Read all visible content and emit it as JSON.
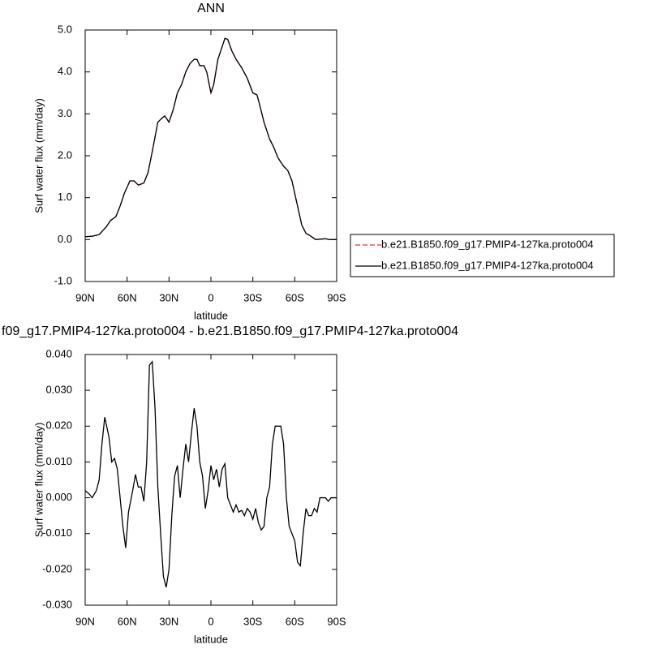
{
  "chart_data": [
    {
      "type": "line",
      "title": "ANN",
      "x_label": "latitude",
      "y_label": "Surf water flux (mm/day)",
      "xlim": [
        90,
        -90
      ],
      "xticks": [
        {
          "value": 90,
          "label": "90N"
        },
        {
          "value": 60,
          "label": "60N"
        },
        {
          "value": 30,
          "label": "30N"
        },
        0,
        {
          "value": -30,
          "label": "30S"
        },
        {
          "value": -60,
          "label": "60S"
        },
        {
          "value": -90,
          "label": "90S"
        }
      ],
      "ylim": [
        -1.0,
        5.0
      ],
      "yticks": [
        {
          "value": -1,
          "label": "-1.0"
        },
        {
          "value": 0,
          "label": "0.0"
        },
        {
          "value": 1,
          "label": "1.0"
        },
        {
          "value": 2,
          "label": "2.0"
        },
        {
          "value": 3,
          "label": "3.0"
        },
        {
          "value": 4,
          "label": "4.0"
        },
        {
          "value": 5,
          "label": "5.0"
        }
      ],
      "legend": "right",
      "x": [
        90,
        85,
        80,
        75,
        72,
        68,
        65,
        62,
        58,
        55,
        52,
        48,
        45,
        42,
        38,
        35,
        33,
        30,
        27,
        24,
        21,
        18,
        15,
        12,
        10,
        8,
        5,
        3,
        0,
        -2,
        -5,
        -8,
        -10,
        -12,
        -15,
        -18,
        -22,
        -26,
        -30,
        -33,
        -35,
        -38,
        -42,
        -45,
        -48,
        -52,
        -55,
        -58,
        -62,
        -65,
        -68,
        -72,
        -75,
        -78,
        -82,
        -85,
        -90
      ],
      "series": [
        {
          "name": "b.e21.B1850.f09_g17.PMIP4-127ka.proto004",
          "color": "#e03030",
          "dash": true,
          "values": [
            0.07,
            0.08,
            0.12,
            0.3,
            0.45,
            0.55,
            0.8,
            1.1,
            1.4,
            1.4,
            1.3,
            1.35,
            1.6,
            2.1,
            2.8,
            2.9,
            2.95,
            2.8,
            3.1,
            3.5,
            3.7,
            4.0,
            4.2,
            4.3,
            4.3,
            4.15,
            4.15,
            4.0,
            3.5,
            3.7,
            4.3,
            4.6,
            4.8,
            4.78,
            4.5,
            4.3,
            4.1,
            3.85,
            3.5,
            3.45,
            3.2,
            2.8,
            2.4,
            2.2,
            1.95,
            1.75,
            1.65,
            1.4,
            0.8,
            0.35,
            0.15,
            0.07,
            0.0,
            0.01,
            0.02,
            0.0,
            0.0
          ]
        },
        {
          "name": "b.e21.B1850.f09_g17.PMIP4-127ka.proto004",
          "color": "#000000",
          "dash": false,
          "values": [
            0.07,
            0.08,
            0.12,
            0.3,
            0.45,
            0.55,
            0.8,
            1.1,
            1.4,
            1.4,
            1.3,
            1.35,
            1.6,
            2.1,
            2.8,
            2.9,
            2.95,
            2.8,
            3.1,
            3.5,
            3.7,
            4.0,
            4.2,
            4.3,
            4.3,
            4.15,
            4.15,
            4.0,
            3.5,
            3.7,
            4.3,
            4.6,
            4.8,
            4.78,
            4.5,
            4.3,
            4.1,
            3.85,
            3.5,
            3.45,
            3.2,
            2.8,
            2.4,
            2.2,
            1.95,
            1.75,
            1.65,
            1.4,
            0.8,
            0.35,
            0.15,
            0.07,
            0.0,
            0.01,
            0.02,
            0.0,
            0.0
          ]
        }
      ]
    },
    {
      "type": "line",
      "title": "f09_g17.PMIP4-127ka.proto004 - b.e21.B1850.f09_g17.PMIP4-127ka.proto004",
      "x_label": "latitude",
      "y_label": "Surf water flux (mm/day)",
      "xlim": [
        90,
        -90
      ],
      "xticks": [
        {
          "value": 90,
          "label": "90N"
        },
        {
          "value": 60,
          "label": "60N"
        },
        {
          "value": 30,
          "label": "30N"
        },
        0,
        {
          "value": -30,
          "label": "30S"
        },
        {
          "value": -60,
          "label": "60S"
        },
        {
          "value": -90,
          "label": "90S"
        }
      ],
      "ylim": [
        -0.03,
        0.04
      ],
      "yticks": [
        {
          "value": -0.03,
          "label": "-0.030"
        },
        {
          "value": -0.02,
          "label": "-0.020"
        },
        {
          "value": -0.01,
          "label": "-0.010"
        },
        {
          "value": 0,
          "label": "0.000"
        },
        {
          "value": 0.01,
          "label": "0.010"
        },
        {
          "value": 0.02,
          "label": "0.020"
        },
        {
          "value": 0.03,
          "label": "0.030"
        },
        {
          "value": 0.04,
          "label": "0.040"
        }
      ],
      "x": [
        90,
        87,
        85,
        82,
        80,
        78,
        76,
        73,
        71,
        69,
        67,
        65,
        63,
        61,
        59,
        56,
        54,
        52,
        50,
        48,
        46,
        44,
        42,
        40,
        38,
        36,
        34,
        32,
        30,
        28,
        26,
        24,
        22,
        20,
        18,
        16,
        14,
        12,
        10,
        8,
        6,
        4,
        2,
        0,
        -2,
        -4,
        -6,
        -8,
        -10,
        -12,
        -14,
        -16,
        -18,
        -20,
        -22,
        -24,
        -26,
        -28,
        -30,
        -32,
        -34,
        -36,
        -38,
        -40,
        -42,
        -44,
        -46,
        -48,
        -50,
        -52,
        -54,
        -56,
        -58,
        -60,
        -62,
        -64,
        -66,
        -68,
        -70,
        -72,
        -74,
        -76,
        -78,
        -80,
        -82,
        -84,
        -86,
        -90
      ],
      "series": [
        {
          "name": null,
          "color": "#000000",
          "dash": false,
          "values": [
            0.002,
            0.001,
            0.0,
            0.002,
            0.005,
            0.015,
            0.0225,
            0.017,
            0.01,
            0.011,
            0.008,
            0.0,
            -0.008,
            -0.014,
            -0.004,
            0.002,
            0.0065,
            0.003,
            0.003,
            -0.001,
            0.01,
            0.037,
            0.038,
            0.025,
            0.003,
            -0.01,
            -0.022,
            -0.025,
            -0.02,
            -0.005,
            0.006,
            0.009,
            0.0,
            0.008,
            0.015,
            0.01,
            0.018,
            0.025,
            0.02,
            0.01,
            0.006,
            -0.003,
            0.002,
            0.009,
            0.005,
            0.008,
            0.003,
            0.008,
            0.0095,
            0.0,
            -0.002,
            -0.004,
            -0.002,
            -0.004,
            -0.0035,
            -0.005,
            -0.003,
            -0.004,
            -0.006,
            -0.003,
            -0.007,
            -0.009,
            -0.008,
            0.0,
            0.003,
            0.015,
            0.02,
            0.02,
            0.02,
            0.015,
            0.0,
            -0.008,
            -0.01,
            -0.012,
            -0.018,
            -0.019,
            -0.01,
            -0.003,
            -0.005,
            -0.005,
            -0.003,
            -0.004,
            0.0,
            0.0,
            0.0,
            -0.001,
            0.0,
            0.0
          ]
        }
      ]
    }
  ]
}
